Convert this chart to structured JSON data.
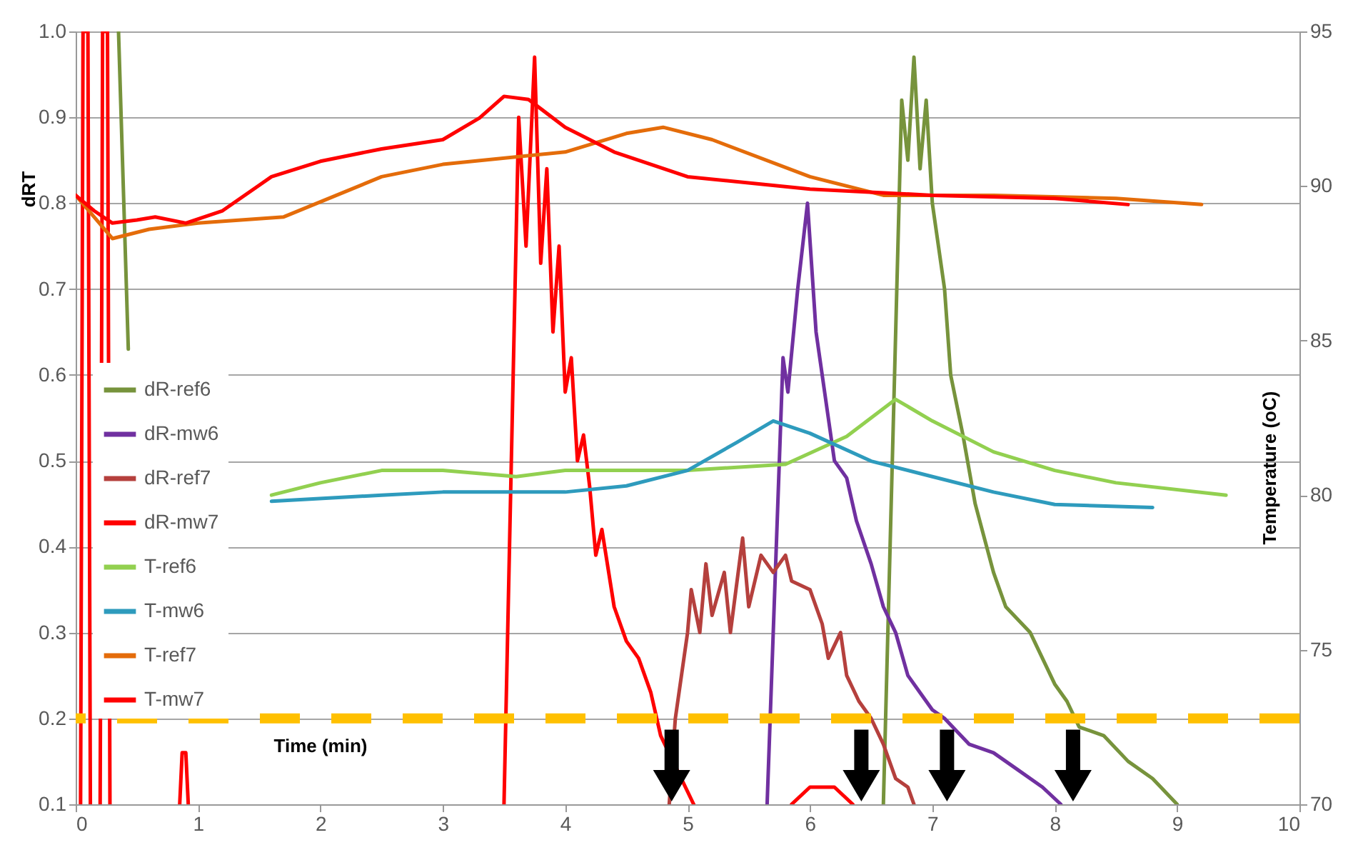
{
  "chart_data": {
    "type": "line",
    "xlabel": "Time (min)",
    "ylabel": "dRT",
    "y2label": "Temperature (oC)",
    "xlim": [
      0,
      10
    ],
    "xticks": [
      0,
      1,
      2,
      3,
      4,
      5,
      6,
      7,
      8,
      9,
      10
    ],
    "ylim": [
      0.1,
      1
    ],
    "yticks": [
      0.1,
      0.2,
      0.3,
      0.4,
      0.5,
      0.6,
      0.7,
      0.8,
      0.9,
      {
        "value": 1,
        "label": "1.0"
      }
    ],
    "y2lim": [
      70,
      95
    ],
    "y2ticks": [
      70,
      75,
      80,
      85,
      90,
      95
    ],
    "grid": "y",
    "legend": "left",
    "marker": "none",
    "line_style": "solid",
    "ref_lines": [
      {
        "axis": "y",
        "value": 0.2,
        "color": "#ffc000",
        "line_style": "dashed"
      }
    ],
    "series": [
      {
        "name": "dR-ref6",
        "color": "#77933c",
        "x": [
          0.35,
          0.43,
          0.45,
          6.6,
          6.75,
          6.8,
          6.85,
          6.9,
          6.95,
          7.0,
          7.1,
          7.15,
          7.25,
          7.35,
          7.5,
          7.6,
          7.8,
          7.9,
          8.0,
          8.1,
          8.2,
          8.4,
          8.6,
          8.8,
          9.0
        ],
        "values": [
          1.0,
          0.63,
          null,
          0.1,
          0.92,
          0.85,
          0.97,
          0.84,
          0.92,
          0.8,
          0.7,
          0.6,
          0.53,
          0.45,
          0.37,
          0.33,
          0.3,
          0.27,
          0.24,
          0.22,
          0.19,
          0.18,
          0.15,
          0.13,
          0.1
        ]
      },
      {
        "name": "dR-mw6",
        "color": "#7030a0",
        "x": [
          5.65,
          5.78,
          5.82,
          5.9,
          5.98,
          6.05,
          6.15,
          6.2,
          6.3,
          6.38,
          6.5,
          6.6,
          6.7,
          6.8,
          6.9,
          7.0,
          7.1,
          7.3,
          7.5,
          7.7,
          7.9,
          8.05
        ],
        "values": [
          0.1,
          0.62,
          0.58,
          0.7,
          0.8,
          0.65,
          0.55,
          0.5,
          0.48,
          0.43,
          0.38,
          0.33,
          0.3,
          0.25,
          0.23,
          0.21,
          0.2,
          0.17,
          0.16,
          0.14,
          0.12,
          0.1
        ]
      },
      {
        "name": "dR-ref7",
        "color": "#b5403d",
        "x": [
          4.85,
          4.9,
          5.0,
          5.03,
          5.1,
          5.15,
          5.2,
          5.3,
          5.35,
          5.45,
          5.5,
          5.6,
          5.7,
          5.8,
          5.85,
          6.0,
          6.1,
          6.15,
          6.25,
          6.3,
          6.4,
          6.5,
          6.6,
          6.7,
          6.8,
          6.85
        ],
        "values": [
          0.1,
          0.2,
          0.3,
          0.35,
          0.3,
          0.38,
          0.32,
          0.37,
          0.3,
          0.41,
          0.33,
          0.39,
          0.37,
          0.39,
          0.36,
          0.35,
          0.31,
          0.27,
          0.3,
          0.25,
          0.22,
          0.2,
          0.17,
          0.13,
          0.12,
          0.1
        ]
      },
      {
        "name": "dR-mw7",
        "color": "#ff0000",
        "x": [
          0.04,
          0.06,
          0.1,
          0.12,
          0.13,
          0.2,
          0.22,
          0.26,
          0.28,
          0.3,
          0.85,
          0.87,
          0.9,
          0.92,
          0.93,
          3.5,
          3.62,
          3.68,
          3.75,
          3.8,
          3.85,
          3.9,
          3.95,
          4.0,
          4.05,
          4.1,
          4.15,
          4.2,
          4.25,
          4.3,
          4.4,
          4.5,
          4.6,
          4.7,
          4.78,
          5.05,
          5.06,
          5.85,
          6.0,
          6.2,
          6.35
        ],
        "values": [
          0.1,
          1.0,
          1.0,
          0.1,
          null,
          0.1,
          1.0,
          1.0,
          0.1,
          null,
          0.1,
          0.16,
          0.16,
          0.1,
          null,
          0.1,
          0.9,
          0.75,
          0.97,
          0.73,
          0.84,
          0.65,
          0.75,
          0.58,
          0.62,
          0.5,
          0.53,
          0.47,
          0.39,
          0.42,
          0.33,
          0.29,
          0.27,
          0.23,
          0.18,
          0.1,
          null,
          0.1,
          0.12,
          0.12,
          0.1
        ]
      },
      {
        "name": "T-ref6",
        "color": "#92d050",
        "axis": "y2",
        "x": [
          1.6,
          2.0,
          2.5,
          3.0,
          3.6,
          4.0,
          5.0,
          5.8,
          6.3,
          6.7,
          7.0,
          7.5,
          8.0,
          8.5,
          9.4
        ],
        "values": [
          80.0,
          80.4,
          80.8,
          80.8,
          80.6,
          80.8,
          80.8,
          81.0,
          81.9,
          83.1,
          82.4,
          81.4,
          80.8,
          80.4,
          80.0
        ]
      },
      {
        "name": "T-mw6",
        "color": "#2e9bbd",
        "axis": "y2",
        "x": [
          1.6,
          2.5,
          3.0,
          4.0,
          4.5,
          5.0,
          5.4,
          5.7,
          6.0,
          6.5,
          7.0,
          7.5,
          8.0,
          8.8
        ],
        "values": [
          79.8,
          80.0,
          80.1,
          80.1,
          80.3,
          80.8,
          81.7,
          82.4,
          82.0,
          81.1,
          80.6,
          80.1,
          79.7,
          79.6
        ]
      },
      {
        "name": "T-ref7",
        "color": "#e46c0a",
        "axis": "y2",
        "x": [
          0,
          0.3,
          0.6,
          1.0,
          1.7,
          2.5,
          3.0,
          4.0,
          4.5,
          4.8,
          5.2,
          6.0,
          6.6,
          7.5,
          8.5,
          9.2
        ],
        "values": [
          89.7,
          88.3,
          88.6,
          88.8,
          89.0,
          90.3,
          90.7,
          91.1,
          91.7,
          91.9,
          91.5,
          90.3,
          89.7,
          89.7,
          89.6,
          89.4
        ]
      },
      {
        "name": "T-mw7",
        "color": "#ff0000",
        "axis": "y2",
        "x": [
          0,
          0.15,
          0.3,
          0.5,
          0.65,
          0.9,
          1.2,
          1.6,
          2.0,
          2.5,
          3.0,
          3.3,
          3.5,
          3.7,
          4.0,
          4.4,
          5.0,
          6.0,
          7.0,
          8.0,
          8.6
        ],
        "values": [
          89.7,
          89.2,
          88.8,
          88.9,
          89.0,
          88.8,
          89.2,
          90.3,
          90.8,
          91.2,
          91.5,
          92.2,
          92.9,
          92.8,
          91.9,
          91.1,
          90.3,
          89.9,
          89.7,
          89.6,
          89.4
        ]
      }
    ]
  }
}
